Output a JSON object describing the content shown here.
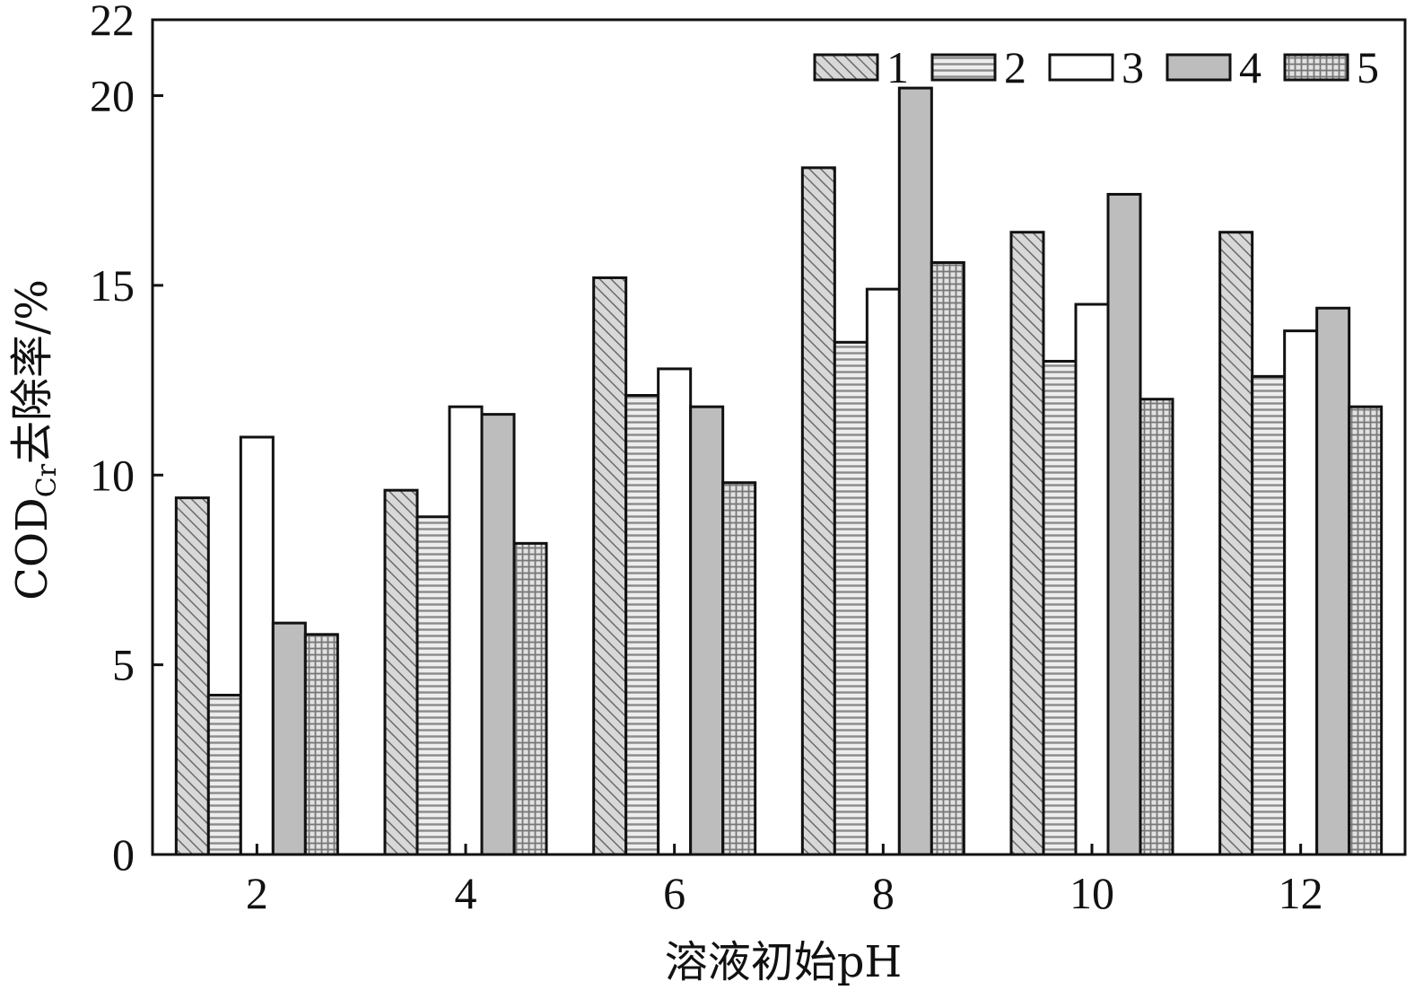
{
  "chart_data": {
    "type": "bar",
    "categories": [
      "2",
      "4",
      "6",
      "8",
      "10",
      "12"
    ],
    "series": [
      {
        "name": "1",
        "values": [
          9.4,
          9.6,
          15.2,
          18.1,
          16.4,
          16.4
        ]
      },
      {
        "name": "2",
        "values": [
          4.2,
          8.9,
          12.1,
          13.5,
          13.0,
          12.6
        ]
      },
      {
        "name": "3",
        "values": [
          11.0,
          11.8,
          12.8,
          14.9,
          14.5,
          13.8
        ]
      },
      {
        "name": "4",
        "values": [
          6.1,
          11.6,
          11.8,
          20.2,
          17.4,
          14.4
        ]
      },
      {
        "name": "5",
        "values": [
          5.8,
          8.2,
          9.8,
          15.6,
          12.0,
          11.8
        ]
      }
    ],
    "xlabel": "溶液初始pH",
    "ylabel": {
      "main": "COD",
      "sub": "Cr",
      "rest": "去除率/%"
    },
    "ylim": [
      0,
      22
    ],
    "yticks": [
      0,
      5,
      10,
      15,
      20,
      22
    ],
    "legend_position": "top-right",
    "grid": false
  },
  "colors": {
    "stroke": "#111111",
    "series1_fill": "#d8d8d8",
    "series1_hatch": "#6a6a6a",
    "series2_fill": "#ededed",
    "series2_hatch": "#8a8a8a",
    "series3_fill": "#ffffff",
    "series4_fill": "#bdbdbd",
    "series5_fill": "#e2e2e2",
    "series5_hatch": "#777777"
  }
}
